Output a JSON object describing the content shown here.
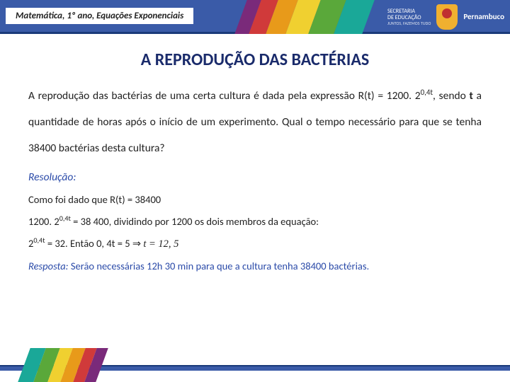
{
  "header": {
    "breadcrumb": "Matemática, 1º ano, Equações Exponenciais",
    "stripe_colors": [
      "#7a2a7a",
      "#d03a3a",
      "#e89a1a",
      "#f0d030",
      "#5aa83a",
      "#1aa898"
    ],
    "logo": {
      "line1": "SECRETARIA",
      "line2": "DE EDUCAÇÃO",
      "line3": "JUNTOS, FAZEMOS TUDO",
      "state": "Pernambuco"
    },
    "bg_color": "#3a5ba8"
  },
  "title": "A REPRODUÇÃO DAS BACTÉRIAS",
  "problem": "A reprodução das bactérias de uma certa cultura é dada pela expressão R(t) = 1200. 2",
  "problem_exp": "0,4t",
  "problem_rest": ", sendo ",
  "problem_bold": "t",
  "problem_tail": " a quantidade de horas após o início de um experimento. Qual o tempo necessário para que se tenha 38400 bactérias desta cultura?",
  "resolution_label": "Resolução:",
  "step1": "Como foi dado que R(t) = 38400",
  "step2a": "1200. 2",
  "step2_exp": "0,4t",
  "step2b": " = 38 400, dividindo por 1200 os dois membros da equação:",
  "step3a": "2",
  "step3_exp": "0,4t",
  "step3b": " = 32. Então 0, 4t = 5 ⇒ ",
  "step3c": "t = 12, 5",
  "answer_label": "Resposta: ",
  "answer_text": "Serão necessárias 12h 30 min para que a cultura tenha 38400 bactérias.",
  "footer_colors": [
    "#1aa898",
    "#5aa83a",
    "#f0d030",
    "#e89a1a",
    "#d03a3a",
    "#7a2a7a"
  ]
}
